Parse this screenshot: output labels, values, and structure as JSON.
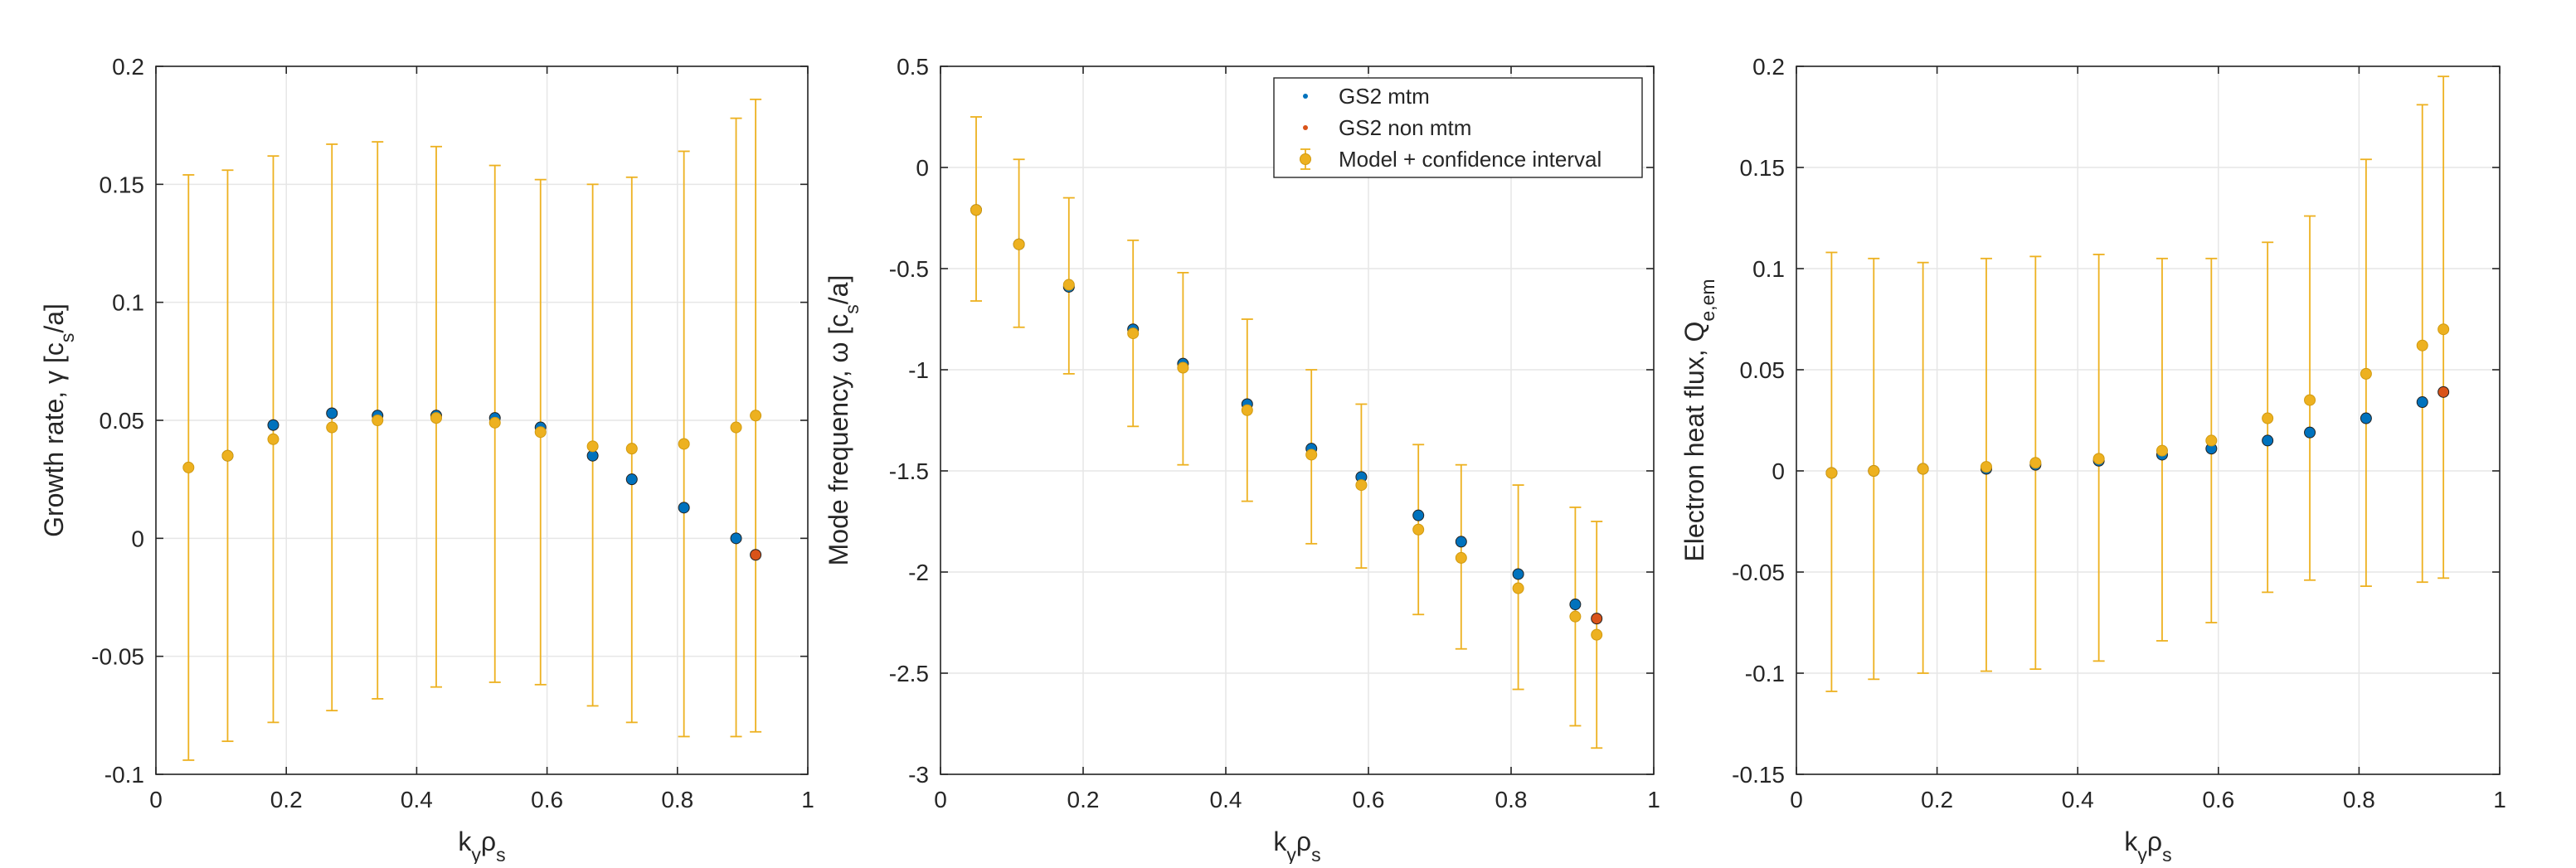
{
  "colors": {
    "gs2_mtm": "#0072BD",
    "gs2_non_mtm": "#D95319",
    "model": "#EDB120",
    "grid": "#e6e6e6",
    "axis": "#262626"
  },
  "legend": {
    "items": [
      {
        "label": "GS2 mtm",
        "color": "#0072BD"
      },
      {
        "label": "GS2 non mtm",
        "color": "#D95319"
      },
      {
        "label": "Model + confidence interval",
        "color": "#EDB120"
      }
    ],
    "placement": "top-right of middle panel"
  },
  "chart_data": [
    {
      "type": "scatter",
      "title": "",
      "xlabel": "k_yρ_s",
      "ylabel": "Growth rate, γ [c_s/a]",
      "xlim": [
        0,
        1
      ],
      "ylim": [
        -0.1,
        0.2
      ],
      "xticks": [
        "0",
        "0.2",
        "0.4",
        "0.6",
        "0.8",
        "1"
      ],
      "yticks": [
        "-0.1",
        "-0.05",
        "0",
        "0.05",
        "0.1",
        "0.15",
        "0.2"
      ],
      "grid": true,
      "series": [
        {
          "name": "GS2 mtm",
          "x": [
            0.11,
            0.18,
            0.27,
            0.34,
            0.43,
            0.52,
            0.59,
            0.67,
            0.73,
            0.81,
            0.89
          ],
          "y": [
            0.035,
            0.048,
            0.053,
            0.052,
            0.052,
            0.051,
            0.047,
            0.035,
            0.025,
            0.013,
            0.0
          ]
        },
        {
          "name": "GS2 non mtm",
          "x": [
            0.92
          ],
          "y": [
            -0.007
          ]
        },
        {
          "name": "Model + confidence interval",
          "x": [
            0.05,
            0.11,
            0.18,
            0.27,
            0.34,
            0.43,
            0.52,
            0.59,
            0.67,
            0.73,
            0.81,
            0.89,
            0.92
          ],
          "y": [
            0.03,
            0.035,
            0.042,
            0.047,
            0.05,
            0.051,
            0.049,
            0.045,
            0.039,
            0.038,
            0.04,
            0.047,
            0.052
          ],
          "lower": [
            -0.094,
            -0.086,
            -0.078,
            -0.073,
            -0.068,
            -0.063,
            -0.061,
            -0.062,
            -0.071,
            -0.078,
            -0.084,
            -0.084,
            -0.082
          ],
          "upper": [
            0.154,
            0.156,
            0.162,
            0.167,
            0.168,
            0.166,
            0.158,
            0.152,
            0.15,
            0.153,
            0.164,
            0.178,
            0.186
          ]
        }
      ]
    },
    {
      "type": "scatter",
      "title": "",
      "xlabel": "k_yρ_s",
      "ylabel": "Mode frequency, ω [c_s/a]",
      "xlim": [
        0,
        1
      ],
      "ylim": [
        -3,
        0.5
      ],
      "xticks": [
        "0",
        "0.2",
        "0.4",
        "0.6",
        "0.8",
        "1"
      ],
      "yticks": [
        "-3",
        "-2.5",
        "-2",
        "-1.5",
        "-1",
        "-0.5",
        "0",
        "0.5"
      ],
      "grid": true,
      "series": [
        {
          "name": "GS2 mtm",
          "x": [
            0.05,
            0.11,
            0.18,
            0.27,
            0.34,
            0.43,
            0.52,
            0.59,
            0.67,
            0.73,
            0.81,
            0.89
          ],
          "y": [
            -0.21,
            -0.38,
            -0.59,
            -0.8,
            -0.97,
            -1.17,
            -1.39,
            -1.53,
            -1.72,
            -1.85,
            -2.01,
            -2.16
          ]
        },
        {
          "name": "GS2 non mtm",
          "x": [
            0.92
          ],
          "y": [
            -2.23
          ]
        },
        {
          "name": "Model + confidence interval",
          "x": [
            0.05,
            0.11,
            0.18,
            0.27,
            0.34,
            0.43,
            0.52,
            0.59,
            0.67,
            0.73,
            0.81,
            0.89,
            0.92
          ],
          "y": [
            -0.21,
            -0.38,
            -0.58,
            -0.82,
            -0.99,
            -1.2,
            -1.42,
            -1.57,
            -1.79,
            -1.93,
            -2.08,
            -2.22,
            -2.31
          ],
          "lower": [
            -0.66,
            -0.79,
            -1.02,
            -1.28,
            -1.47,
            -1.65,
            -1.86,
            -1.98,
            -2.21,
            -2.38,
            -2.58,
            -2.76,
            -2.87
          ],
          "upper": [
            0.25,
            0.04,
            -0.15,
            -0.36,
            -0.52,
            -0.75,
            -1.0,
            -1.17,
            -1.37,
            -1.47,
            -1.57,
            -1.68,
            -1.75
          ]
        }
      ]
    },
    {
      "type": "scatter",
      "title": "",
      "xlabel": "k_yρ_s",
      "ylabel": "Electron heat flux, Q_e,em",
      "xlim": [
        0,
        1
      ],
      "ylim": [
        -0.15,
        0.2
      ],
      "xticks": [
        "0",
        "0.2",
        "0.4",
        "0.6",
        "0.8",
        "1"
      ],
      "yticks": [
        "-0.15",
        "-0.1",
        "-0.05",
        "0",
        "0.05",
        "0.1",
        "0.15",
        "0.2"
      ],
      "grid": true,
      "series": [
        {
          "name": "GS2 mtm",
          "x": [
            0.05,
            0.11,
            0.18,
            0.27,
            0.34,
            0.43,
            0.52,
            0.59,
            0.67,
            0.73,
            0.81,
            0.89
          ],
          "y": [
            -0.001,
            0.0,
            0.001,
            0.001,
            0.003,
            0.005,
            0.008,
            0.011,
            0.015,
            0.019,
            0.026,
            0.034
          ]
        },
        {
          "name": "GS2 non mtm",
          "x": [
            0.92
          ],
          "y": [
            0.039
          ]
        },
        {
          "name": "Model + confidence interval",
          "x": [
            0.05,
            0.11,
            0.18,
            0.27,
            0.34,
            0.43,
            0.52,
            0.59,
            0.67,
            0.73,
            0.81,
            0.89,
            0.92
          ],
          "y": [
            -0.001,
            0.0,
            0.001,
            0.002,
            0.004,
            0.006,
            0.01,
            0.015,
            0.026,
            0.035,
            0.048,
            0.062,
            0.07
          ],
          "lower": [
            -0.109,
            -0.103,
            -0.1,
            -0.099,
            -0.098,
            -0.094,
            -0.084,
            -0.075,
            -0.06,
            -0.054,
            -0.057,
            -0.055,
            -0.053
          ],
          "upper": [
            0.108,
            0.105,
            0.103,
            0.105,
            0.106,
            0.107,
            0.105,
            0.105,
            0.113,
            0.126,
            0.154,
            0.181,
            0.195
          ]
        }
      ]
    }
  ]
}
